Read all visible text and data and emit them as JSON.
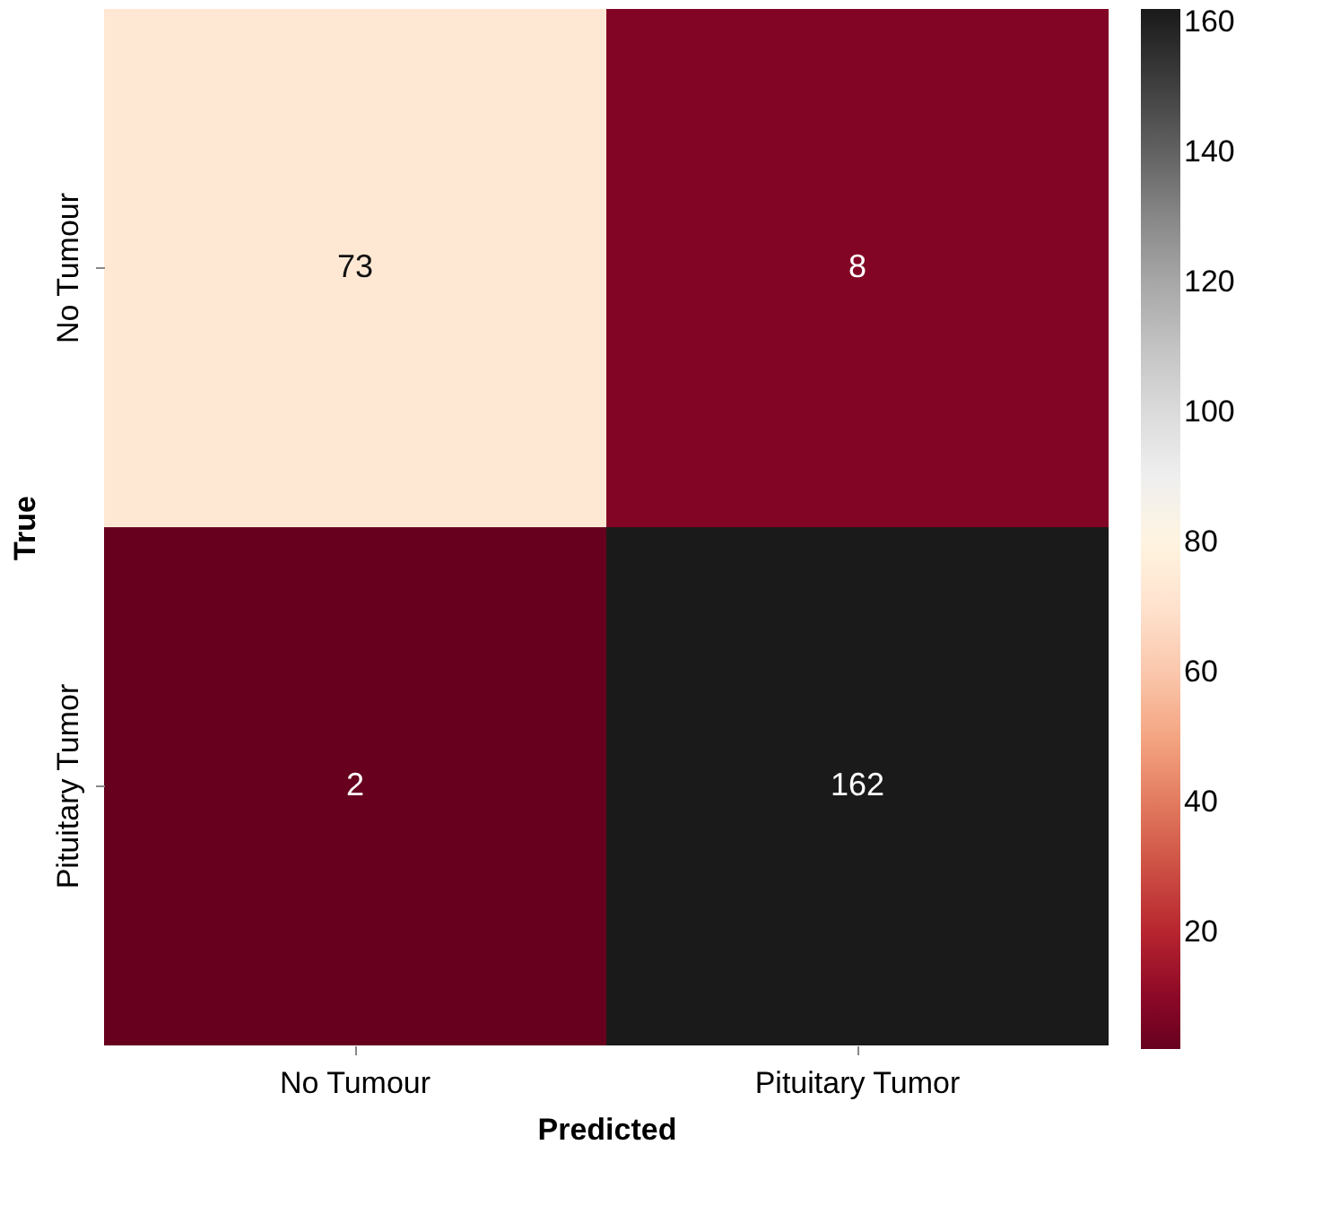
{
  "chart_data": {
    "type": "heatmap",
    "xlabel": "Predicted",
    "ylabel": "True",
    "categories": [
      "No Tumour",
      "Pituitary Tumor"
    ],
    "y_categories": [
      "No Tumour",
      "Pituitary Tumor"
    ],
    "cells": [
      [
        73,
        8
      ],
      [
        2,
        162
      ]
    ],
    "clim": [
      2,
      162
    ],
    "cticks": [
      20,
      40,
      60,
      80,
      100,
      120,
      140,
      160
    ],
    "data_labels": true
  }
}
